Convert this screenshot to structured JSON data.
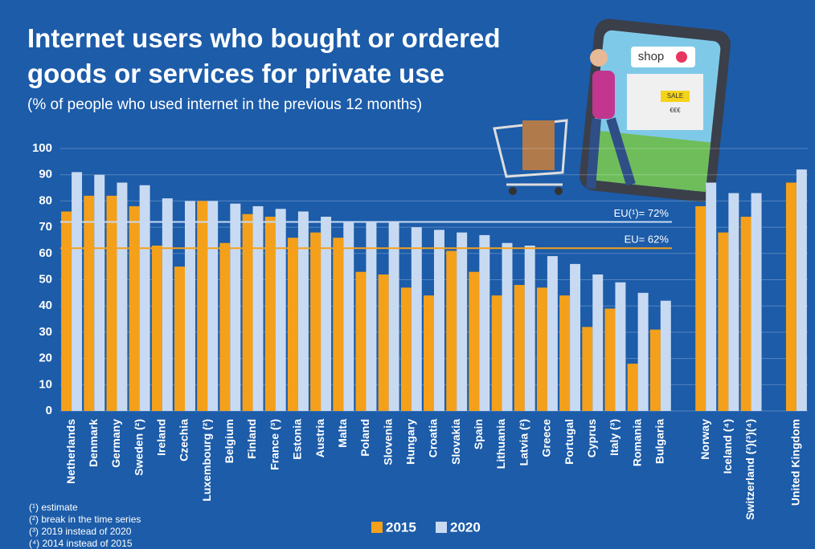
{
  "chart_data": {
    "type": "bar",
    "title": "Internet users who bought or ordered goods or services for private use",
    "subtitle": "(% of people who used internet in the previous 12 months)",
    "categories": [
      "Netherlands",
      "Denmark",
      "Germany",
      "Sweden (²)",
      "Ireland",
      "Czechia",
      "Luxembourg (²)",
      "Belgium",
      "Finland",
      "France (³)",
      "Estonia",
      "Austria",
      "Malta",
      "Poland",
      "Slovenia",
      "Hungary",
      "Croatia",
      "Slovakia",
      "Spain",
      "Lithuania",
      "Latvia (²)",
      "Greece",
      "Portugal",
      "Cyprus",
      "Italy (³)",
      "Romania",
      "Bulgaria",
      null,
      "Norway",
      "Iceland (⁴)",
      "Switzerland (²)(³)(⁴)",
      null,
      "United Kingdom"
    ],
    "series": [
      {
        "name": "2015",
        "color": "#f5a01a",
        "values": [
          76,
          82,
          82,
          78,
          63,
          55,
          80,
          64,
          75,
          74,
          66,
          68,
          66,
          53,
          52,
          47,
          44,
          61,
          53,
          44,
          48,
          47,
          44,
          32,
          39,
          18,
          31,
          null,
          78,
          68,
          74,
          null,
          87
        ]
      },
      {
        "name": "2020",
        "color": "#c8daf2",
        "values": [
          91,
          90,
          87,
          86,
          81,
          80,
          80,
          79,
          78,
          77,
          76,
          74,
          72,
          72,
          72,
          70,
          69,
          68,
          67,
          64,
          63,
          59,
          56,
          52,
          49,
          45,
          42,
          null,
          87,
          83,
          83,
          null,
          92
        ]
      }
    ],
    "reference_lines": [
      {
        "value": 72,
        "label": "EU(¹)= 72%",
        "color": "#c8daf2"
      },
      {
        "value": 62,
        "label": "EU= 62%",
        "color": "#f5a01a"
      }
    ],
    "ylim": [
      0,
      100
    ],
    "yticks": [
      0,
      10,
      20,
      30,
      40,
      50,
      60,
      70,
      80,
      90,
      100
    ],
    "grid": true,
    "footnotes": [
      "(¹) estimate",
      "(²) break in the time series",
      "(³) 2019 instead of 2020",
      "(⁴) 2014 instead of 2015"
    ]
  },
  "illustration": {
    "sign": "shop",
    "sale": "SALE",
    "price": "€€€"
  }
}
